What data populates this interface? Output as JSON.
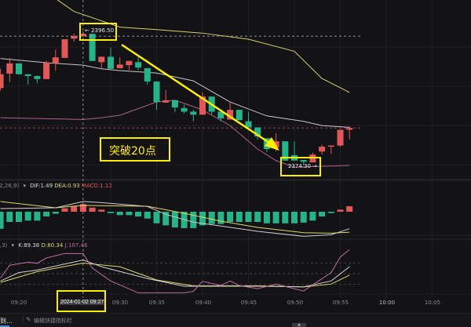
{
  "colors": {
    "up": "#e25858",
    "down": "#26b486",
    "upper_band": "#d8cf6a",
    "mid_band": "#c8c8c8",
    "lower_band": "#b0608f",
    "highlight": "#ffef00",
    "dif": "#d0d0d0",
    "dea": "#e0d66a",
    "k": "#d0d0d0",
    "d": "#e0d66a",
    "j": "#c06aa0"
  },
  "annotations": {
    "high_label": "← 2396.50",
    "low_label": "2374.30 →",
    "callout": "突破20点",
    "crosshair_time": "2024-01-02 09:27"
  },
  "macd_header": {
    "params": "(12,26,9)",
    "dif": "DIF:1.49",
    "dea": "DEA:0.93",
    "macd": "MACD:1.12"
  },
  "kdj_header": {
    "params": "(9,3,3)",
    "k": "K:89.38",
    "d": "D:80.34",
    "j": "J:107.46"
  },
  "time_axis": [
    "09:20",
    "09:30",
    "09:35",
    "09:40",
    "09:45",
    "09:50",
    "09:55",
    "10:00",
    "10:05"
  ],
  "bottom_bar": {
    "left_text": "到...",
    "edit_label": "编辑快捷指标栏"
  },
  "chart_data": {
    "type": "candlestick",
    "candles": [
      {
        "t": "09:18",
        "o": 2387.1,
        "h": 2390.3,
        "l": 2386.7,
        "c": 2389.4
      },
      {
        "t": "09:19",
        "o": 2389.5,
        "h": 2392.1,
        "l": 2388.1,
        "c": 2391.2
      },
      {
        "t": "09:20",
        "o": 2391.2,
        "h": 2391.2,
        "l": 2389.4,
        "c": 2389.4
      },
      {
        "t": "09:21",
        "o": 2389.4,
        "h": 2389.4,
        "l": 2387.7,
        "c": 2389.1
      },
      {
        "t": "09:22",
        "o": 2389.1,
        "h": 2389.2,
        "l": 2387.9,
        "c": 2388.6
      },
      {
        "t": "09:23",
        "o": 2388.6,
        "h": 2391.6,
        "l": 2388.6,
        "c": 2391.3
      },
      {
        "t": "09:24",
        "o": 2391.2,
        "h": 2393.5,
        "l": 2390.0,
        "c": 2392.2
      },
      {
        "t": "09:25",
        "o": 2392.1,
        "h": 2395.2,
        "l": 2392.1,
        "c": 2395.2
      },
      {
        "t": "09:26",
        "o": 2395.3,
        "h": 2396.1,
        "l": 2394.8,
        "c": 2395.7
      },
      {
        "t": "09:27",
        "o": 2395.7,
        "h": 2396.5,
        "l": 2395.6,
        "c": 2396.1
      },
      {
        "t": "09:28",
        "o": 2396.1,
        "h": 2396.1,
        "l": 2391.6,
        "c": 2391.6
      },
      {
        "t": "09:29",
        "o": 2391.4,
        "h": 2392.3,
        "l": 2390.4,
        "c": 2392.3
      },
      {
        "t": "09:30",
        "o": 2392.3,
        "h": 2393.8,
        "l": 2390.3,
        "c": 2390.3
      },
      {
        "t": "09:31",
        "o": 2390.4,
        "h": 2392.2,
        "l": 2390.4,
        "c": 2391.0
      },
      {
        "t": "09:32",
        "o": 2390.9,
        "h": 2391.6,
        "l": 2390.1,
        "c": 2391.6
      },
      {
        "t": "09:33",
        "o": 2391.4,
        "h": 2392.2,
        "l": 2390.1,
        "c": 2390.5
      },
      {
        "t": "09:34",
        "o": 2390.4,
        "h": 2390.4,
        "l": 2387.7,
        "c": 2388.2
      },
      {
        "t": "09:35",
        "o": 2388.2,
        "h": 2388.2,
        "l": 2383.5,
        "c": 2384.8
      },
      {
        "t": "09:36",
        "o": 2384.7,
        "h": 2386.8,
        "l": 2384.7,
        "c": 2385.1
      },
      {
        "t": "09:37",
        "o": 2385.1,
        "h": 2385.1,
        "l": 2383.1,
        "c": 2383.9
      },
      {
        "t": "09:38",
        "o": 2383.8,
        "h": 2384.4,
        "l": 2382.9,
        "c": 2383.2
      },
      {
        "t": "09:39",
        "o": 2383.2,
        "h": 2383.5,
        "l": 2381.6,
        "c": 2382.7
      },
      {
        "t": "09:40",
        "o": 2382.7,
        "h": 2386.4,
        "l": 2382.7,
        "c": 2385.7
      },
      {
        "t": "09:41",
        "o": 2385.7,
        "h": 2385.7,
        "l": 2382.7,
        "c": 2383.2
      },
      {
        "t": "09:42",
        "o": 2383.2,
        "h": 2383.2,
        "l": 2381.6,
        "c": 2382.1
      },
      {
        "t": "09:43",
        "o": 2381.9,
        "h": 2384.8,
        "l": 2381.9,
        "c": 2383.5
      },
      {
        "t": "09:44",
        "o": 2383.5,
        "h": 2383.5,
        "l": 2381.8,
        "c": 2381.8
      },
      {
        "t": "09:45",
        "o": 2381.6,
        "h": 2383.2,
        "l": 2380.2,
        "c": 2380.6
      },
      {
        "t": "09:46",
        "o": 2380.6,
        "h": 2380.6,
        "l": 2378.6,
        "c": 2379.1
      },
      {
        "t": "09:47",
        "o": 2378.8,
        "h": 2378.8,
        "l": 2376.5,
        "c": 2377.0
      },
      {
        "t": "09:48",
        "o": 2377.3,
        "h": 2379.6,
        "l": 2376.6,
        "c": 2378.3
      },
      {
        "t": "09:49",
        "o": 2378.3,
        "h": 2378.3,
        "l": 2375.1,
        "c": 2375.1
      },
      {
        "t": "09:50",
        "o": 2376.0,
        "h": 2378.3,
        "l": 2375.1,
        "c": 2375.1
      },
      {
        "t": "09:51",
        "o": 2375.2,
        "h": 2375.2,
        "l": 2374.3,
        "c": 2374.9
      },
      {
        "t": "09:52",
        "o": 2374.8,
        "h": 2376.4,
        "l": 2374.8,
        "c": 2376.1
      },
      {
        "t": "09:53",
        "o": 2376.6,
        "h": 2377.7,
        "l": 2376.1,
        "c": 2377.4
      },
      {
        "t": "09:54",
        "o": 2377.4,
        "h": 2377.6,
        "l": 2376.2,
        "c": 2377.6
      },
      {
        "t": "09:55",
        "o": 2377.6,
        "h": 2380.2,
        "l": 2377.4,
        "c": 2380.2
      },
      {
        "t": "09:56",
        "o": 2380.2,
        "h": 2380.8,
        "l": 2378.6,
        "c": 2380.5
      }
    ],
    "bollinger": {
      "upper": [
        [
          "09:23",
          2403.0
        ],
        [
          "09:26",
          2399.8
        ],
        [
          "09:31",
          2397.2
        ],
        [
          "09:35",
          2396.8
        ],
        [
          "09:40",
          2396.2
        ],
        [
          "09:45",
          2395.2
        ],
        [
          "09:50",
          2393.2
        ],
        [
          "09:53",
          2388.7
        ],
        [
          "09:56",
          2386.4
        ]
      ],
      "middle": [
        [
          "09:18",
          2392.0
        ],
        [
          "09:23",
          2391.3
        ],
        [
          "09:27",
          2390.9
        ],
        [
          "09:29",
          2390.3
        ],
        [
          "09:31",
          2390.0
        ],
        [
          "09:35",
          2389.6
        ],
        [
          "09:39",
          2388.3
        ],
        [
          "09:43",
          2384.8
        ],
        [
          "09:47",
          2382.5
        ],
        [
          "09:51",
          2381.6
        ],
        [
          "09:53",
          2380.9
        ],
        [
          "09:56",
          2380.6
        ]
      ],
      "lower": [
        [
          "09:18",
          2382.2
        ],
        [
          "09:27",
          2381.9
        ],
        [
          "09:29",
          2382.2
        ],
        [
          "09:31",
          2382.6
        ],
        [
          "09:35",
          2384.8
        ],
        [
          "09:37",
          2385.1
        ],
        [
          "09:40",
          2383.5
        ],
        [
          "09:43",
          2380.9
        ],
        [
          "09:46",
          2377.0
        ],
        [
          "09:48",
          2375.1
        ],
        [
          "09:50",
          2374.0
        ],
        [
          "09:56",
          2374.3
        ]
      ]
    },
    "last_price": 2380.5,
    "crosshair": {
      "time": "09:27",
      "price": 2395.7
    },
    "macd": {
      "hist": [
        -2.5,
        -1.5,
        -1.5,
        -1.3,
        -1.3,
        -0.7,
        -0.3,
        0.5,
        0.8,
        1.12,
        0.6,
        0.3,
        -0.2,
        -0.5,
        -0.5,
        -0.7,
        -1.0,
        -1.7,
        -2.0,
        -2.3,
        -2.4,
        -2.4,
        -2.0,
        -1.8,
        -1.8,
        -1.5,
        -1.5,
        -1.5,
        -1.5,
        -1.7,
        -1.7,
        -1.7,
        -1.7,
        -1.6,
        -1.3,
        -0.7,
        -0.2,
        0.3,
        0.8
      ],
      "dif": [
        [
          "09:18",
          0.46
        ],
        [
          "09:24",
          0.57
        ],
        [
          "09:27",
          1.49
        ],
        [
          "09:29",
          1.34
        ],
        [
          "09:34",
          0.77
        ],
        [
          "09:36",
          -0.38
        ],
        [
          "09:39",
          -1.53
        ],
        [
          "09:42",
          -2.1
        ],
        [
          "09:46",
          -2.87
        ],
        [
          "09:51",
          -3.6
        ],
        [
          "09:54",
          -3.37
        ],
        [
          "09:56",
          -2.49
        ]
      ],
      "dea": [
        [
          "09:18",
          1.5
        ],
        [
          "09:24",
          0.57
        ],
        [
          "09:27",
          0.93
        ],
        [
          "09:34",
          0.8
        ],
        [
          "09:38",
          -0.23
        ],
        [
          "09:42",
          -1.38
        ],
        [
          "09:46",
          -2.3
        ],
        [
          "09:51",
          -3.07
        ],
        [
          "09:54",
          -3.14
        ],
        [
          "09:56",
          -3.0
        ]
      ]
    },
    "kdj": {
      "levels": [
        80,
        50,
        20
      ],
      "k": [
        [
          "09:18",
          29
        ],
        [
          "09:20",
          53
        ],
        [
          "09:22",
          60.5
        ],
        [
          "09:27",
          89.38
        ],
        [
          "09:29",
          70
        ],
        [
          "09:34",
          36
        ],
        [
          "09:38",
          14
        ],
        [
          "09:42",
          14
        ],
        [
          "09:46",
          14
        ],
        [
          "09:51",
          12
        ],
        [
          "09:54",
          29
        ],
        [
          "09:56",
          70
        ]
      ],
      "d": [
        [
          "09:18",
          25
        ],
        [
          "09:22",
          56
        ],
        [
          "09:27",
          80.34
        ],
        [
          "09:31",
          70
        ],
        [
          "09:35",
          32
        ],
        [
          "09:39",
          15
        ],
        [
          "09:46",
          15
        ],
        [
          "09:51",
          12
        ],
        [
          "09:54",
          20
        ],
        [
          "09:56",
          46
        ]
      ],
      "j": [
        [
          "09:18",
          37
        ],
        [
          "09:19",
          74
        ],
        [
          "09:21",
          83
        ],
        [
          "09:22",
          80
        ],
        [
          "09:23",
          95
        ],
        [
          "09:25",
          108
        ],
        [
          "09:27",
          107.46
        ],
        [
          "09:28",
          66
        ],
        [
          "09:30",
          29
        ],
        [
          "09:33",
          -5
        ],
        [
          "09:36",
          -5
        ],
        [
          "09:38",
          -5
        ],
        [
          "09:39",
          -1
        ],
        [
          "09:40",
          28
        ],
        [
          "09:42",
          16
        ],
        [
          "09:43",
          29
        ],
        [
          "09:44",
          16
        ],
        [
          "09:46",
          7
        ],
        [
          "09:48",
          20
        ],
        [
          "09:51",
          0
        ],
        [
          "09:52",
          18
        ],
        [
          "09:54",
          53
        ],
        [
          "09:55",
          98
        ],
        [
          "09:56",
          119
        ]
      ]
    }
  }
}
